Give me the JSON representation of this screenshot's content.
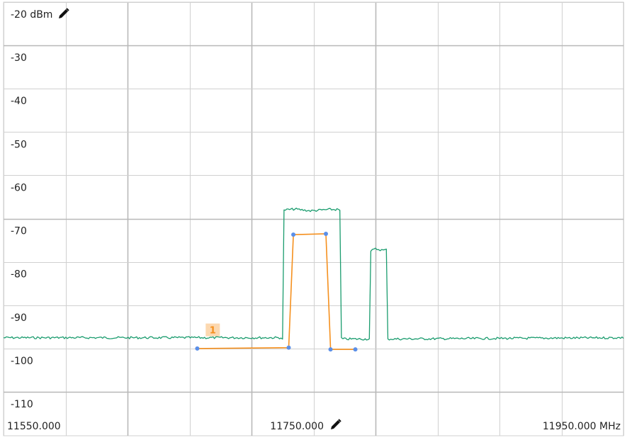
{
  "chart_data": {
    "type": "line",
    "x_unit": "MHz",
    "y_unit": "dBm",
    "xlim": [
      11550,
      11950
    ],
    "ylim": [
      -115,
      -20
    ],
    "grid": true,
    "y_tick_labels": [
      "-20 dBm",
      "-30",
      "-40",
      "-50",
      "-60",
      "-70",
      "-80",
      "-90",
      "-100",
      "-110"
    ],
    "y_tick_values": [
      -20,
      -30,
      -40,
      -50,
      -60,
      -70,
      -80,
      -90,
      -100,
      -110
    ],
    "x_tick_labels": {
      "left": "11550.000",
      "center": "11750.000",
      "right": "11950.000 MHz"
    },
    "x_tick_values": [
      11550,
      11750,
      11950
    ],
    "series": [
      {
        "role": "trace",
        "color": "#1a9c6e",
        "points": [
          [
            11550,
            -97.5
          ],
          [
            11729,
            -97.5
          ],
          [
            11730,
            -98.0
          ],
          [
            11731,
            -68.0
          ],
          [
            11738,
            -67.8
          ],
          [
            11748,
            -68.2
          ],
          [
            11760,
            -67.9
          ],
          [
            11766,
            -67.9
          ],
          [
            11767,
            -68.2
          ],
          [
            11768,
            -97.5
          ],
          [
            11769,
            -97.8
          ],
          [
            11786,
            -97.8
          ],
          [
            11787,
            -77.5
          ],
          [
            11790,
            -77.0
          ],
          [
            11795,
            -77.3
          ],
          [
            11797,
            -77.2
          ],
          [
            11798,
            -97.8
          ],
          [
            11950,
            -97.5
          ]
        ]
      },
      {
        "role": "limit-line",
        "color": "#f5901e",
        "marker_color": "#5b8fe8",
        "points": [
          [
            11675,
            -100.0
          ],
          [
            11734,
            -99.8
          ],
          [
            11737,
            -73.7
          ],
          [
            11758,
            -73.5
          ],
          [
            11761,
            -100.2
          ],
          [
            11777,
            -100.2
          ]
        ]
      }
    ],
    "markers": [
      {
        "label": "1",
        "x": 11685,
        "y": -97.5,
        "color": "#f5901e",
        "background": "#fcd8b0"
      }
    ]
  },
  "icons": {
    "y_edit": "pencil-icon",
    "x_edit": "pencil-icon"
  },
  "colors": {
    "grid": "#d0d0d0",
    "grid_major": "#b8b8b8",
    "background": "#ffffff"
  }
}
